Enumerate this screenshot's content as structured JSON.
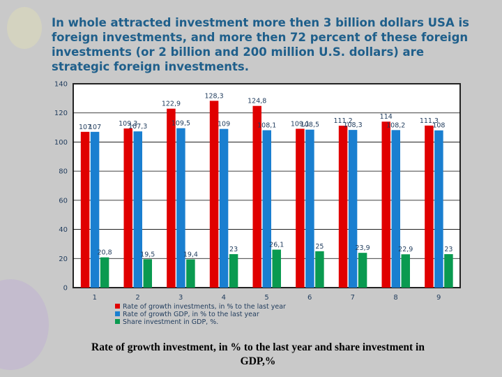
{
  "heading": "In whole attracted investment more then 3 billion dollars USA is foreign investments, and more then 72 percent of these foreign investments (or 2 billion and 200 million U.S. dollars) are strategic foreign investments.",
  "caption": "Rate of growth investment, in % to the last year and share investment in GDP,%",
  "chart_data": {
    "type": "bar",
    "categories": [
      "1",
      "2",
      "3",
      "4",
      "5",
      "6",
      "7",
      "8",
      "9"
    ],
    "series": [
      {
        "name": "Rate of growth investments, in % to the last year",
        "color": "#e00000",
        "values": [
          107,
          109.3,
          122.9,
          128.3,
          124.8,
          109.1,
          111.2,
          114,
          111.3
        ],
        "labels": [
          "107",
          "109,3",
          "122,9",
          "128,3",
          "124,8",
          "109,1",
          "111,2",
          "114",
          "111,3"
        ]
      },
      {
        "name": "Rate of growth GDP, in % to the last year",
        "color": "#1a7fd0",
        "values": [
          107,
          107.3,
          109.5,
          109,
          108.1,
          108.5,
          108.3,
          108.2,
          108
        ],
        "labels": [
          "107",
          "107,3",
          "109,5",
          "109",
          "108,1",
          "108,5",
          "108,3",
          "108,2",
          "108"
        ]
      },
      {
        "name": "Share investment in GDP, %.",
        "color": "#0a9a50",
        "values": [
          20.8,
          19.5,
          19.4,
          23,
          26.1,
          25,
          23.9,
          22.9,
          23
        ],
        "labels": [
          "20,8",
          "19,5",
          "19,4",
          "23",
          "26,1",
          "25",
          "23,9",
          "22,9",
          "23"
        ]
      }
    ],
    "ylim": [
      0,
      140
    ],
    "yticks": [
      "0",
      "20",
      "40",
      "60",
      "80",
      "100",
      "120",
      "140"
    ],
    "grid": true,
    "legend_position": "bottom-left"
  }
}
